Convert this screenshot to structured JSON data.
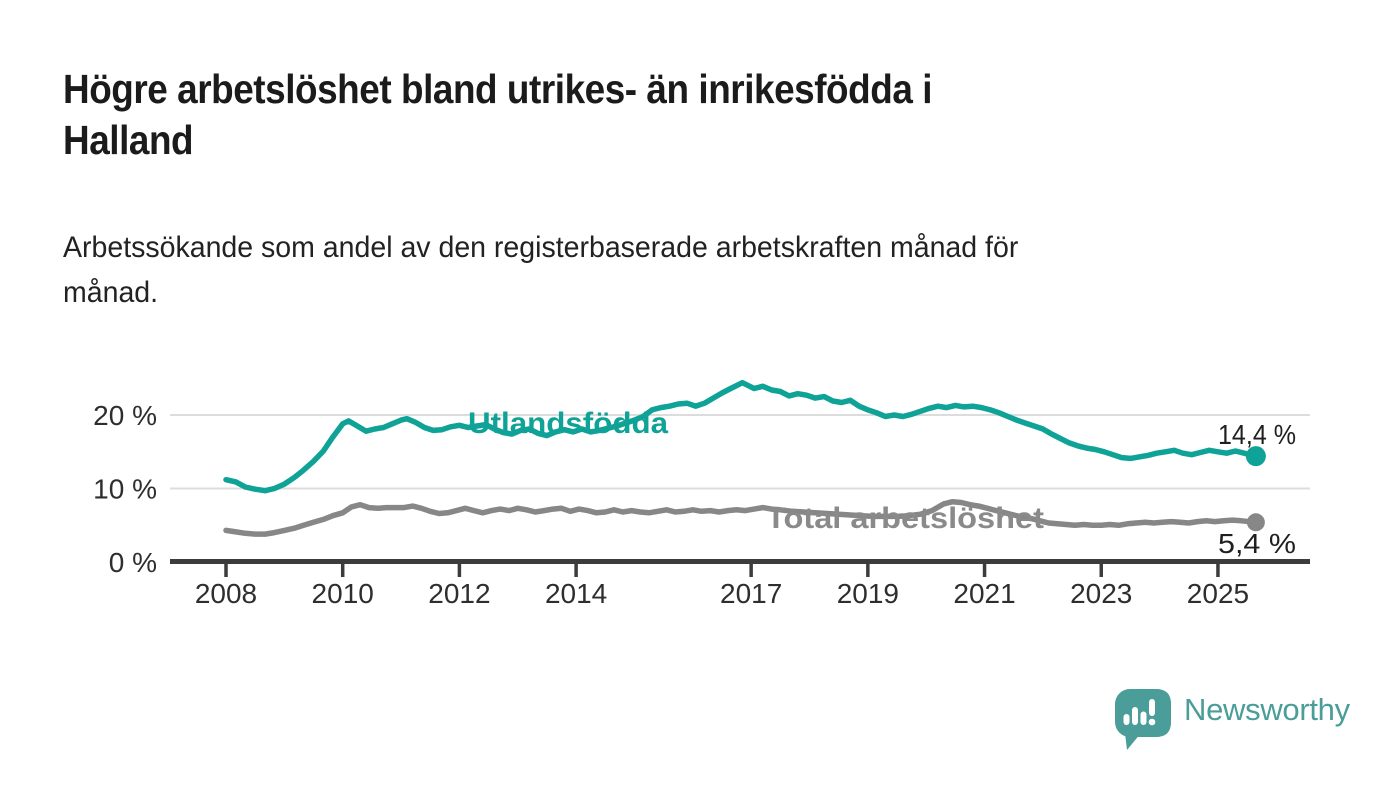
{
  "header": {
    "title_lines": [
      "Högre arbetslöshet bland utrikes- än inrikesfödda i",
      "Halland"
    ],
    "subtitle_lines": [
      "Arbetssökande som andel av den registerbaserade arbetskraften månad för",
      "månad."
    ]
  },
  "colors": {
    "accent_teal": "#0fa296",
    "series_gray": "#878787",
    "gray_label": "#8a8a8a",
    "logo_teal": "#4a9d98",
    "title_text": "#1b1b1b",
    "body_text": "#222222",
    "axis_line": "#3c3c3c",
    "tick_text": "#2e2e2e",
    "gridline": "#dcdcdc",
    "value_label_text": "#1f1f1f"
  },
  "footer": {
    "brand": "Newsworthy",
    "logo_icon": "speech-bubble-bar-chart-icon"
  },
  "chart_data": {
    "type": "line",
    "title": "Högre arbetslöshet bland utrikes- än inrikesfödda i Halland",
    "subtitle": "Arbetssökande som andel av den registerbaserade arbetskraften månad för månad.",
    "unit": "%",
    "grid": "horizontal",
    "legend_position": "inline-labels",
    "xlim": [
      2007.05,
      2026.55
    ],
    "ylim": [
      0,
      26
    ],
    "x_axis": {
      "ticks": [
        2008,
        2010,
        2012,
        2014,
        2017,
        2019,
        2021,
        2023,
        2025
      ],
      "tick_labels": [
        "2008",
        "2010",
        "2012",
        "2014",
        "2017",
        "2019",
        "2021",
        "2023",
        "2025"
      ]
    },
    "y_axis": {
      "ticks": [
        0,
        10,
        20
      ],
      "tick_labels": [
        "0 %",
        "10 %",
        "20 %"
      ]
    },
    "series": [
      {
        "name": "Utlandsfödda",
        "color": "#0fa296",
        "end_label": "14,4 %",
        "end_value": 14.4,
        "points": [
          [
            2008.0,
            11.2
          ],
          [
            2008.17,
            10.9
          ],
          [
            2008.33,
            10.2
          ],
          [
            2008.5,
            9.9
          ],
          [
            2008.67,
            9.7
          ],
          [
            2008.83,
            10.0
          ],
          [
            2009.0,
            10.6
          ],
          [
            2009.17,
            11.5
          ],
          [
            2009.33,
            12.5
          ],
          [
            2009.5,
            13.7
          ],
          [
            2009.67,
            15.1
          ],
          [
            2009.83,
            17.0
          ],
          [
            2010.0,
            18.8
          ],
          [
            2010.1,
            19.2
          ],
          [
            2010.25,
            18.5
          ],
          [
            2010.4,
            17.8
          ],
          [
            2010.55,
            18.1
          ],
          [
            2010.7,
            18.3
          ],
          [
            2010.85,
            18.8
          ],
          [
            2011.0,
            19.3
          ],
          [
            2011.1,
            19.5
          ],
          [
            2011.25,
            19.0
          ],
          [
            2011.4,
            18.3
          ],
          [
            2011.55,
            17.9
          ],
          [
            2011.7,
            18.0
          ],
          [
            2011.85,
            18.4
          ],
          [
            2012.0,
            18.6
          ],
          [
            2012.15,
            18.3
          ],
          [
            2012.3,
            18.5
          ],
          [
            2012.45,
            18.7
          ],
          [
            2012.6,
            18.1
          ],
          [
            2012.75,
            17.6
          ],
          [
            2012.9,
            17.4
          ],
          [
            2013.05,
            17.9
          ],
          [
            2013.2,
            18.1
          ],
          [
            2013.35,
            17.5
          ],
          [
            2013.5,
            17.2
          ],
          [
            2013.65,
            17.7
          ],
          [
            2013.8,
            18.0
          ],
          [
            2013.95,
            17.7
          ],
          [
            2014.1,
            18.1
          ],
          [
            2014.25,
            17.7
          ],
          [
            2014.4,
            17.9
          ],
          [
            2014.55,
            18.2
          ],
          [
            2014.7,
            18.5
          ],
          [
            2014.85,
            18.9
          ],
          [
            2015.0,
            19.3
          ],
          [
            2015.15,
            19.8
          ],
          [
            2015.3,
            20.7
          ],
          [
            2015.45,
            21.0
          ],
          [
            2015.6,
            21.2
          ],
          [
            2015.75,
            21.5
          ],
          [
            2015.9,
            21.6
          ],
          [
            2016.05,
            21.2
          ],
          [
            2016.2,
            21.6
          ],
          [
            2016.35,
            22.3
          ],
          [
            2016.5,
            23.0
          ],
          [
            2016.65,
            23.6
          ],
          [
            2016.85,
            24.4
          ],
          [
            2016.95,
            24.0
          ],
          [
            2017.05,
            23.6
          ],
          [
            2017.2,
            23.9
          ],
          [
            2017.35,
            23.4
          ],
          [
            2017.5,
            23.2
          ],
          [
            2017.65,
            22.6
          ],
          [
            2017.8,
            22.9
          ],
          [
            2017.95,
            22.7
          ],
          [
            2018.1,
            22.3
          ],
          [
            2018.25,
            22.5
          ],
          [
            2018.4,
            21.9
          ],
          [
            2018.55,
            21.7
          ],
          [
            2018.7,
            22.0
          ],
          [
            2018.85,
            21.2
          ],
          [
            2019.0,
            20.7
          ],
          [
            2019.15,
            20.3
          ],
          [
            2019.3,
            19.8
          ],
          [
            2019.45,
            20.0
          ],
          [
            2019.6,
            19.8
          ],
          [
            2019.75,
            20.1
          ],
          [
            2019.9,
            20.5
          ],
          [
            2020.05,
            20.9
          ],
          [
            2020.2,
            21.2
          ],
          [
            2020.35,
            21.0
          ],
          [
            2020.5,
            21.3
          ],
          [
            2020.65,
            21.1
          ],
          [
            2020.8,
            21.2
          ],
          [
            2020.95,
            21.0
          ],
          [
            2021.1,
            20.7
          ],
          [
            2021.25,
            20.3
          ],
          [
            2021.4,
            19.8
          ],
          [
            2021.55,
            19.3
          ],
          [
            2021.7,
            18.9
          ],
          [
            2021.85,
            18.5
          ],
          [
            2022.0,
            18.1
          ],
          [
            2022.15,
            17.4
          ],
          [
            2022.3,
            16.8
          ],
          [
            2022.45,
            16.2
          ],
          [
            2022.6,
            15.8
          ],
          [
            2022.75,
            15.5
          ],
          [
            2022.9,
            15.3
          ],
          [
            2023.05,
            15.0
          ],
          [
            2023.2,
            14.6
          ],
          [
            2023.35,
            14.2
          ],
          [
            2023.5,
            14.1
          ],
          [
            2023.65,
            14.3
          ],
          [
            2023.8,
            14.5
          ],
          [
            2023.95,
            14.8
          ],
          [
            2024.1,
            15.0
          ],
          [
            2024.25,
            15.2
          ],
          [
            2024.4,
            14.8
          ],
          [
            2024.55,
            14.6
          ],
          [
            2024.7,
            14.9
          ],
          [
            2024.85,
            15.2
          ],
          [
            2025.0,
            15.0
          ],
          [
            2025.15,
            14.8
          ],
          [
            2025.3,
            15.1
          ],
          [
            2025.45,
            14.8
          ],
          [
            2025.65,
            14.4
          ]
        ]
      },
      {
        "name": "Total arbetslöshet",
        "color": "#878787",
        "end_label": "5,4 %",
        "end_value": 5.4,
        "points": [
          [
            2008.0,
            4.3
          ],
          [
            2008.17,
            4.1
          ],
          [
            2008.33,
            3.9
          ],
          [
            2008.5,
            3.8
          ],
          [
            2008.67,
            3.8
          ],
          [
            2008.83,
            4.0
          ],
          [
            2009.0,
            4.3
          ],
          [
            2009.17,
            4.6
          ],
          [
            2009.33,
            5.0
          ],
          [
            2009.5,
            5.4
          ],
          [
            2009.67,
            5.8
          ],
          [
            2009.83,
            6.3
          ],
          [
            2010.0,
            6.7
          ],
          [
            2010.15,
            7.5
          ],
          [
            2010.3,
            7.8
          ],
          [
            2010.45,
            7.4
          ],
          [
            2010.6,
            7.3
          ],
          [
            2010.75,
            7.4
          ],
          [
            2010.9,
            7.4
          ],
          [
            2011.05,
            7.4
          ],
          [
            2011.2,
            7.6
          ],
          [
            2011.35,
            7.3
          ],
          [
            2011.5,
            6.9
          ],
          [
            2011.65,
            6.6
          ],
          [
            2011.8,
            6.7
          ],
          [
            2011.95,
            7.0
          ],
          [
            2012.1,
            7.3
          ],
          [
            2012.25,
            7.0
          ],
          [
            2012.4,
            6.7
          ],
          [
            2012.55,
            7.0
          ],
          [
            2012.7,
            7.2
          ],
          [
            2012.85,
            7.0
          ],
          [
            2013.0,
            7.3
          ],
          [
            2013.15,
            7.1
          ],
          [
            2013.3,
            6.8
          ],
          [
            2013.45,
            7.0
          ],
          [
            2013.6,
            7.2
          ],
          [
            2013.75,
            7.3
          ],
          [
            2013.9,
            6.9
          ],
          [
            2014.05,
            7.2
          ],
          [
            2014.2,
            7.0
          ],
          [
            2014.35,
            6.7
          ],
          [
            2014.5,
            6.8
          ],
          [
            2014.65,
            7.1
          ],
          [
            2014.8,
            6.8
          ],
          [
            2014.95,
            7.0
          ],
          [
            2015.1,
            6.8
          ],
          [
            2015.25,
            6.7
          ],
          [
            2015.4,
            6.9
          ],
          [
            2015.55,
            7.1
          ],
          [
            2015.7,
            6.8
          ],
          [
            2015.85,
            6.9
          ],
          [
            2016.0,
            7.1
          ],
          [
            2016.15,
            6.9
          ],
          [
            2016.3,
            7.0
          ],
          [
            2016.45,
            6.8
          ],
          [
            2016.6,
            7.0
          ],
          [
            2016.75,
            7.1
          ],
          [
            2016.9,
            7.0
          ],
          [
            2017.05,
            7.2
          ],
          [
            2017.2,
            7.4
          ],
          [
            2017.35,
            7.2
          ],
          [
            2017.5,
            7.1
          ],
          [
            2017.7,
            6.9
          ],
          [
            2017.9,
            6.8
          ],
          [
            2018.1,
            6.7
          ],
          [
            2018.3,
            6.6
          ],
          [
            2018.5,
            6.5
          ],
          [
            2018.7,
            6.4
          ],
          [
            2018.9,
            6.3
          ],
          [
            2019.1,
            6.2
          ],
          [
            2019.3,
            6.2
          ],
          [
            2019.5,
            6.2
          ],
          [
            2019.7,
            6.3
          ],
          [
            2019.9,
            6.5
          ],
          [
            2020.1,
            7.0
          ],
          [
            2020.3,
            7.9
          ],
          [
            2020.45,
            8.2
          ],
          [
            2020.6,
            8.1
          ],
          [
            2020.75,
            7.8
          ],
          [
            2020.9,
            7.6
          ],
          [
            2021.05,
            7.3
          ],
          [
            2021.2,
            7.0
          ],
          [
            2021.35,
            6.7
          ],
          [
            2021.5,
            6.4
          ],
          [
            2021.65,
            6.1
          ],
          [
            2021.8,
            5.9
          ],
          [
            2021.95,
            5.6
          ],
          [
            2022.1,
            5.3
          ],
          [
            2022.25,
            5.2
          ],
          [
            2022.4,
            5.1
          ],
          [
            2022.55,
            5.0
          ],
          [
            2022.7,
            5.1
          ],
          [
            2022.85,
            5.0
          ],
          [
            2023.0,
            5.0
          ],
          [
            2023.15,
            5.1
          ],
          [
            2023.3,
            5.0
          ],
          [
            2023.45,
            5.2
          ],
          [
            2023.6,
            5.3
          ],
          [
            2023.75,
            5.4
          ],
          [
            2023.9,
            5.3
          ],
          [
            2024.05,
            5.4
          ],
          [
            2024.2,
            5.5
          ],
          [
            2024.35,
            5.4
          ],
          [
            2024.5,
            5.3
          ],
          [
            2024.65,
            5.5
          ],
          [
            2024.8,
            5.6
          ],
          [
            2024.95,
            5.5
          ],
          [
            2025.1,
            5.6
          ],
          [
            2025.25,
            5.7
          ],
          [
            2025.4,
            5.6
          ],
          [
            2025.65,
            5.4
          ]
        ]
      }
    ]
  }
}
